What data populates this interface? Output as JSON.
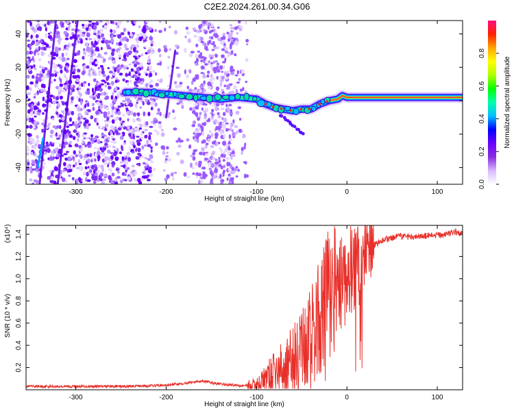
{
  "title": "C2E2.2024.261.00.34.G06",
  "chart_data": [
    {
      "type": "heatmap",
      "xlabel": "Height of straight line (km)",
      "ylabel": "Frequency (Hz)",
      "xlim": [
        -355,
        128
      ],
      "ylim": [
        -50,
        48
      ],
      "xticks": [
        -300,
        -200,
        -100,
        0,
        100
      ],
      "yticks": [
        -40,
        -20,
        0,
        20,
        40
      ],
      "colorbar": {
        "label": "Normalized spectral amplitude",
        "range": [
          0,
          1
        ],
        "ticks": [
          "0.0",
          "0.2",
          "0.4",
          "0.6",
          "0.8"
        ],
        "colormap": [
          "#ffffff",
          "#d8b8ff",
          "#8a2be2",
          "#6a00ff",
          "#0000ff",
          "#00bfff",
          "#00ffb0",
          "#00ff00",
          "#b0ff00",
          "#ffff00",
          "#ffa500",
          "#ff2000",
          "#ff1080"
        ]
      },
      "noise_region_x": [
        -355,
        -110
      ],
      "ridge": {
        "x": [
          -245,
          -220,
          -200,
          -180,
          -160,
          -140,
          -120,
          -100,
          -90,
          -80,
          -70,
          -60,
          -50,
          -40,
          -30,
          -20,
          -10,
          -5,
          0,
          10,
          30,
          60,
          90,
          110,
          128
        ],
        "y": [
          5,
          5,
          4,
          3,
          2,
          1,
          2,
          1,
          -2,
          -4,
          -5,
          -6,
          -5,
          -5,
          -2,
          0,
          1,
          3,
          2,
          2,
          2,
          2,
          2,
          2,
          2
        ]
      }
    },
    {
      "type": "line",
      "xlabel": "Height of straight line (km)",
      "ylabel": "SNR (10 * v/v)",
      "yscale_label": "(x10⁴)",
      "xlim": [
        -355,
        128
      ],
      "ylim": [
        0,
        1.48
      ],
      "xticks": [
        -300,
        -200,
        -100,
        0,
        100
      ],
      "yticks": [
        0.2,
        0.4,
        0.6,
        0.8,
        1.0,
        1.2,
        1.4
      ],
      "series": [
        {
          "color": "#e8302a",
          "x": [
            -355,
            -300,
            -250,
            -200,
            -180,
            -160,
            -140,
            -120,
            -100,
            -90,
            -80,
            -70,
            -60,
            -50,
            -40,
            -30,
            -20,
            -10,
            0,
            10,
            20,
            30,
            40,
            60,
            80,
            100,
            110,
            120,
            128
          ],
          "y": [
            0.03,
            0.03,
            0.03,
            0.04,
            0.06,
            0.08,
            0.05,
            0.04,
            0.04,
            0.1,
            0.15,
            0.18,
            0.25,
            0.35,
            0.45,
            0.65,
            0.85,
            1.0,
            1.05,
            1.1,
            1.2,
            1.3,
            1.35,
            1.38,
            1.38,
            1.39,
            1.4,
            1.42,
            1.4
          ]
        }
      ]
    }
  ]
}
